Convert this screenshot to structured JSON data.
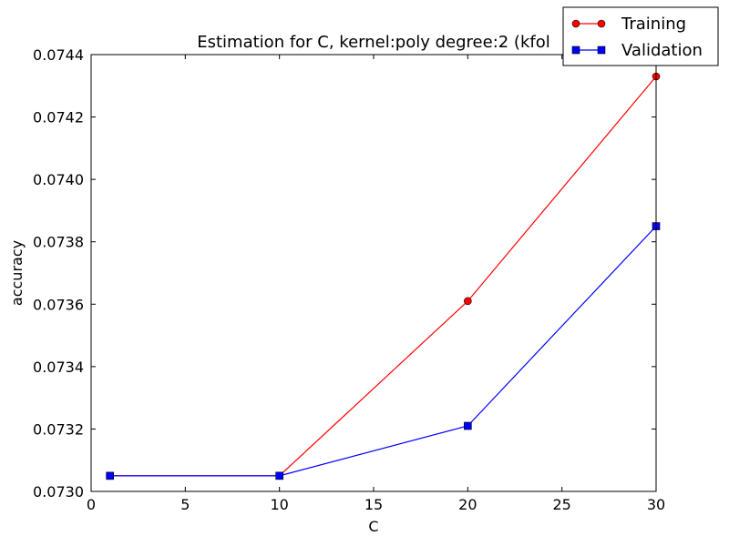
{
  "chart_data": {
    "type": "line",
    "title": "Estimation for C, kernel:poly degree:2 (kfol",
    "xlabel": "C",
    "ylabel": "accuracy",
    "xlim": [
      0,
      30
    ],
    "ylim": [
      0.073,
      0.0744
    ],
    "xticks": [
      0,
      5,
      10,
      15,
      20,
      25,
      30
    ],
    "xtick_labels": [
      "0",
      "5",
      "10",
      "15",
      "20",
      "25",
      "30"
    ],
    "yticks": [
      0.073,
      0.0732,
      0.0734,
      0.0736,
      0.0738,
      0.074,
      0.0742,
      0.0744
    ],
    "ytick_labels": [
      "0.0730",
      "0.0732",
      "0.0734",
      "0.0736",
      "0.0738",
      "0.0740",
      "0.0742",
      "0.0744"
    ],
    "grid": false,
    "legend_position": "top-right",
    "x": [
      1,
      10,
      20,
      30
    ],
    "series": [
      {
        "name": "Training",
        "values": [
          0.07305,
          0.07305,
          0.07361,
          0.07433
        ],
        "color": "#ff0000",
        "marker": "circle"
      },
      {
        "name": "Validation",
        "values": [
          0.07305,
          0.07305,
          0.07321,
          0.07385
        ],
        "color": "#0000ff",
        "marker": "square"
      }
    ]
  }
}
